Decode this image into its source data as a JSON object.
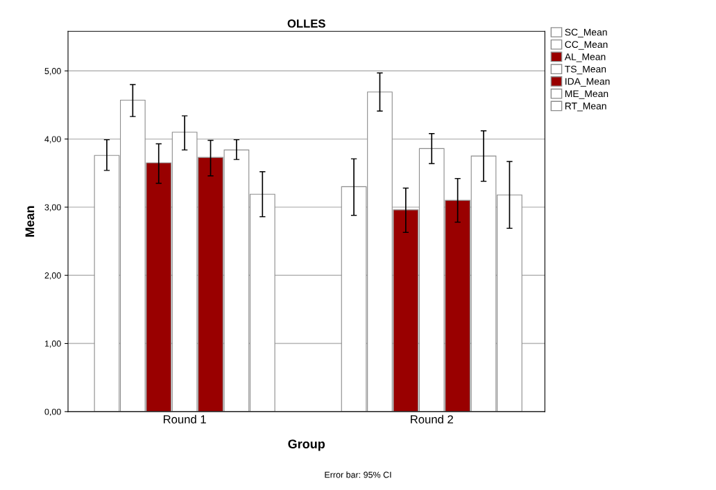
{
  "chart_data": {
    "type": "bar",
    "title": "OLLES",
    "xlabel": "Group",
    "ylabel": "Mean",
    "annotations": [
      "Error bar: 95% CI"
    ],
    "categories": [
      "Round 1",
      "Round 2"
    ],
    "series": [
      {
        "name": "SC_Mean",
        "color": "#ffffff",
        "values": [
          3.76,
          3.3
        ],
        "errors": [
          [
            3.54,
            3.99
          ],
          [
            2.88,
            3.71
          ]
        ]
      },
      {
        "name": "CC_Mean",
        "color": "#ffffff",
        "values": [
          4.57,
          4.69
        ],
        "errors": [
          [
            4.33,
            4.8
          ],
          [
            4.41,
            4.97
          ]
        ]
      },
      {
        "name": "AL_Mean",
        "color": "#990000",
        "values": [
          3.65,
          2.96
        ],
        "errors": [
          [
            3.35,
            3.93
          ],
          [
            2.63,
            3.28
          ]
        ]
      },
      {
        "name": "TS_Mean",
        "color": "#ffffff",
        "values": [
          4.1,
          3.86
        ],
        "errors": [
          [
            3.84,
            4.34
          ],
          [
            3.64,
            4.08
          ]
        ]
      },
      {
        "name": "IDA_Mean",
        "color": "#990000",
        "values": [
          3.73,
          3.1
        ],
        "errors": [
          [
            3.46,
            3.98
          ],
          [
            2.78,
            3.42
          ]
        ]
      },
      {
        "name": "ME_Mean",
        "color": "#ffffff",
        "values": [
          3.84,
          3.75
        ],
        "errors": [
          [
            3.7,
            3.99
          ],
          [
            3.38,
            4.12
          ]
        ]
      },
      {
        "name": "RT_Mean",
        "color": "#ffffff",
        "values": [
          3.19,
          3.18
        ],
        "errors": [
          [
            2.86,
            3.52
          ],
          [
            2.69,
            3.67
          ]
        ]
      }
    ],
    "ylim": [
      0,
      5.58
    ],
    "yticks": [
      {
        "value": 0,
        "label": "0,00"
      },
      {
        "value": 1,
        "label": "1,00"
      },
      {
        "value": 2,
        "label": "2,00"
      },
      {
        "value": 3,
        "label": "3,00"
      },
      {
        "value": 4,
        "label": "4,00"
      },
      {
        "value": 5,
        "label": "5,00"
      }
    ],
    "grid": "y",
    "legend": "top right"
  }
}
